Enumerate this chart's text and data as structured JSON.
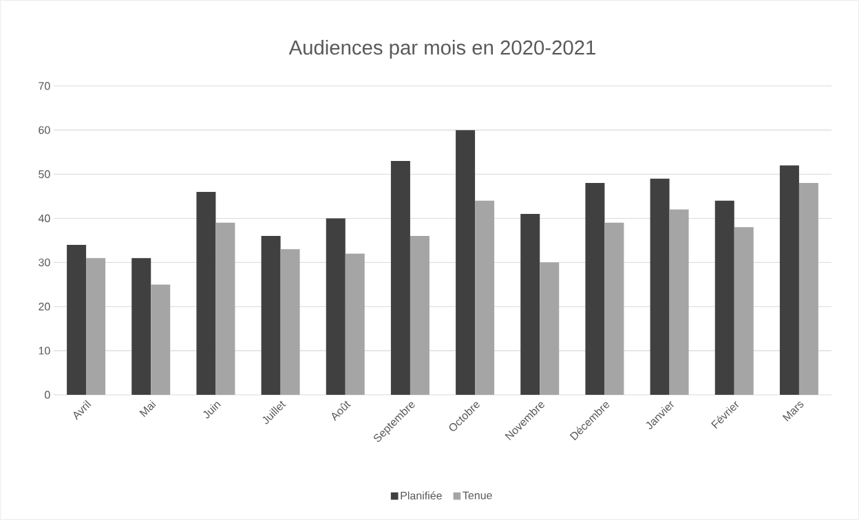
{
  "chart_data": {
    "type": "bar",
    "title": "Audiences par mois en 2020-2021",
    "categories": [
      "Avril",
      "Mai",
      "Juin",
      "Juillet",
      "Août",
      "Septembre",
      "Octobre",
      "Novembre",
      "Décembre",
      "Janvier",
      "Février",
      "Mars"
    ],
    "series": [
      {
        "name": "Planifiée",
        "color": "#404040",
        "values": [
          34,
          31,
          46,
          36,
          40,
          53,
          60,
          41,
          48,
          49,
          44,
          52
        ]
      },
      {
        "name": "Tenue",
        "color": "#a5a5a5",
        "values": [
          31,
          25,
          39,
          33,
          32,
          36,
          44,
          30,
          39,
          42,
          38,
          48
        ]
      }
    ],
    "ylim": [
      0,
      70
    ],
    "yticks": [
      0,
      10,
      20,
      30,
      40,
      50,
      60,
      70
    ],
    "grid": "y",
    "legend": "bottom"
  }
}
